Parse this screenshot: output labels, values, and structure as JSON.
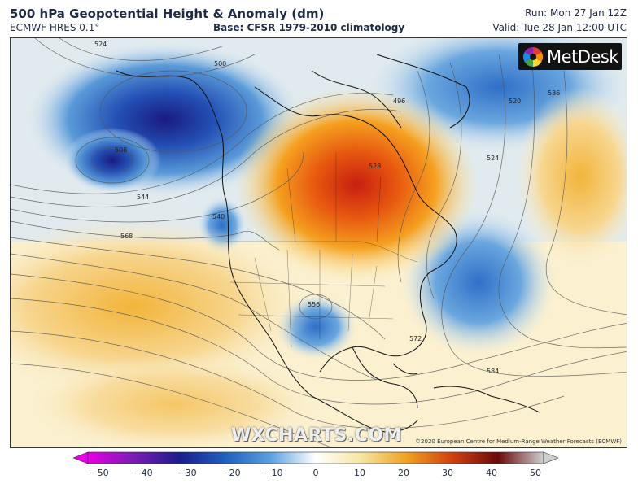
{
  "header": {
    "title": "500 hPa Geopotential Height & Anomaly (dm)",
    "model": "ECMWF HRES 0.1°",
    "base": "Base: CFSR 1979-2010 climatology",
    "run": "Run: Mon 27 Jan 12Z",
    "valid": "Valid: Tue 28 Jan 12:00 UTC"
  },
  "brand": {
    "name": "MetDesk",
    "icon": "metdesk-logo-icon"
  },
  "watermark": "WXCHARTS.COM",
  "credit": "©2020 European Centre for Medium-Range Weather Forecasts (ECMWF)",
  "contour_labels": [
    "524",
    "508",
    "500",
    "496",
    "520",
    "536",
    "524",
    "528",
    "544",
    "568",
    "540",
    "556",
    "572",
    "584"
  ],
  "colorbar": {
    "ticks": [
      "−50",
      "−40",
      "−30",
      "−20",
      "−10",
      "0",
      "10",
      "20",
      "30",
      "40",
      "50"
    ],
    "colors": [
      "#e600e6",
      "#7a1bb3",
      "#1c1c8c",
      "#1f5fbf",
      "#5aa0e0",
      "#ffffff",
      "#f5e6a0",
      "#f0a020",
      "#d04010",
      "#6a0a0a",
      "#cfcfcf"
    ]
  }
}
